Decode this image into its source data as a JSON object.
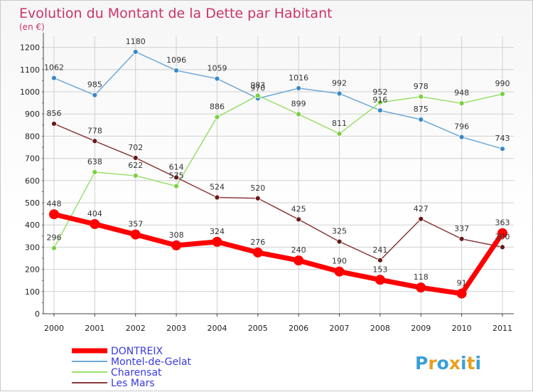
{
  "title": "Evolution du Montant de la Dette par Habitant",
  "subtitle": "(en €)",
  "brand": {
    "letters": [
      "P",
      "r",
      "o",
      "x",
      "i",
      "t",
      "i"
    ],
    "colors": [
      "#3aa0d8",
      "#e8a020",
      "#3aa0d8",
      "#e8a020",
      "#3aa0d8",
      "#e8a020",
      "#3aa0d8"
    ]
  },
  "colors": {
    "title": "#cc3366",
    "legend_text": "#3a3ae0",
    "grid": "#d0d0d0",
    "axis": "#444444"
  },
  "chart_data": {
    "type": "line",
    "x": [
      "2000",
      "2001",
      "2002",
      "2003",
      "2004",
      "2005",
      "2006",
      "2007",
      "2008",
      "2009",
      "2010",
      "2011"
    ],
    "yticks": [
      0,
      100,
      200,
      300,
      400,
      500,
      600,
      700,
      800,
      900,
      1000,
      1100,
      1200
    ],
    "ylim": [
      0,
      1250
    ],
    "grid": true,
    "legend_position": "bottom-left",
    "series": [
      {
        "name": "DONTREIX",
        "color": "#ff0000",
        "marker": "#ff0000",
        "width": 7,
        "labels": true,
        "values": [
          448,
          404,
          357,
          308,
          324,
          276,
          240,
          190,
          153,
          118,
          91,
          363
        ]
      },
      {
        "name": "Montel-de-Gelat",
        "color": "#6fa8d6",
        "marker": "#3b88c8",
        "width": 1.5,
        "labels": true,
        "values": [
          1062,
          985,
          1180,
          1096,
          1059,
          970,
          1016,
          992,
          916,
          875,
          796,
          743
        ]
      },
      {
        "name": "Charensat",
        "color": "#99e06a",
        "marker": "#79d040",
        "width": 1.5,
        "labels": true,
        "values": [
          296,
          638,
          622,
          575,
          886,
          983,
          899,
          811,
          952,
          978,
          948,
          990
        ]
      },
      {
        "name": "Les Mars",
        "color": "#8b3a3a",
        "marker": "#6a1818",
        "width": 1.5,
        "labels": true,
        "values": [
          856,
          778,
          702,
          614,
          524,
          520,
          425,
          325,
          241,
          427,
          337,
          300
        ]
      }
    ]
  }
}
